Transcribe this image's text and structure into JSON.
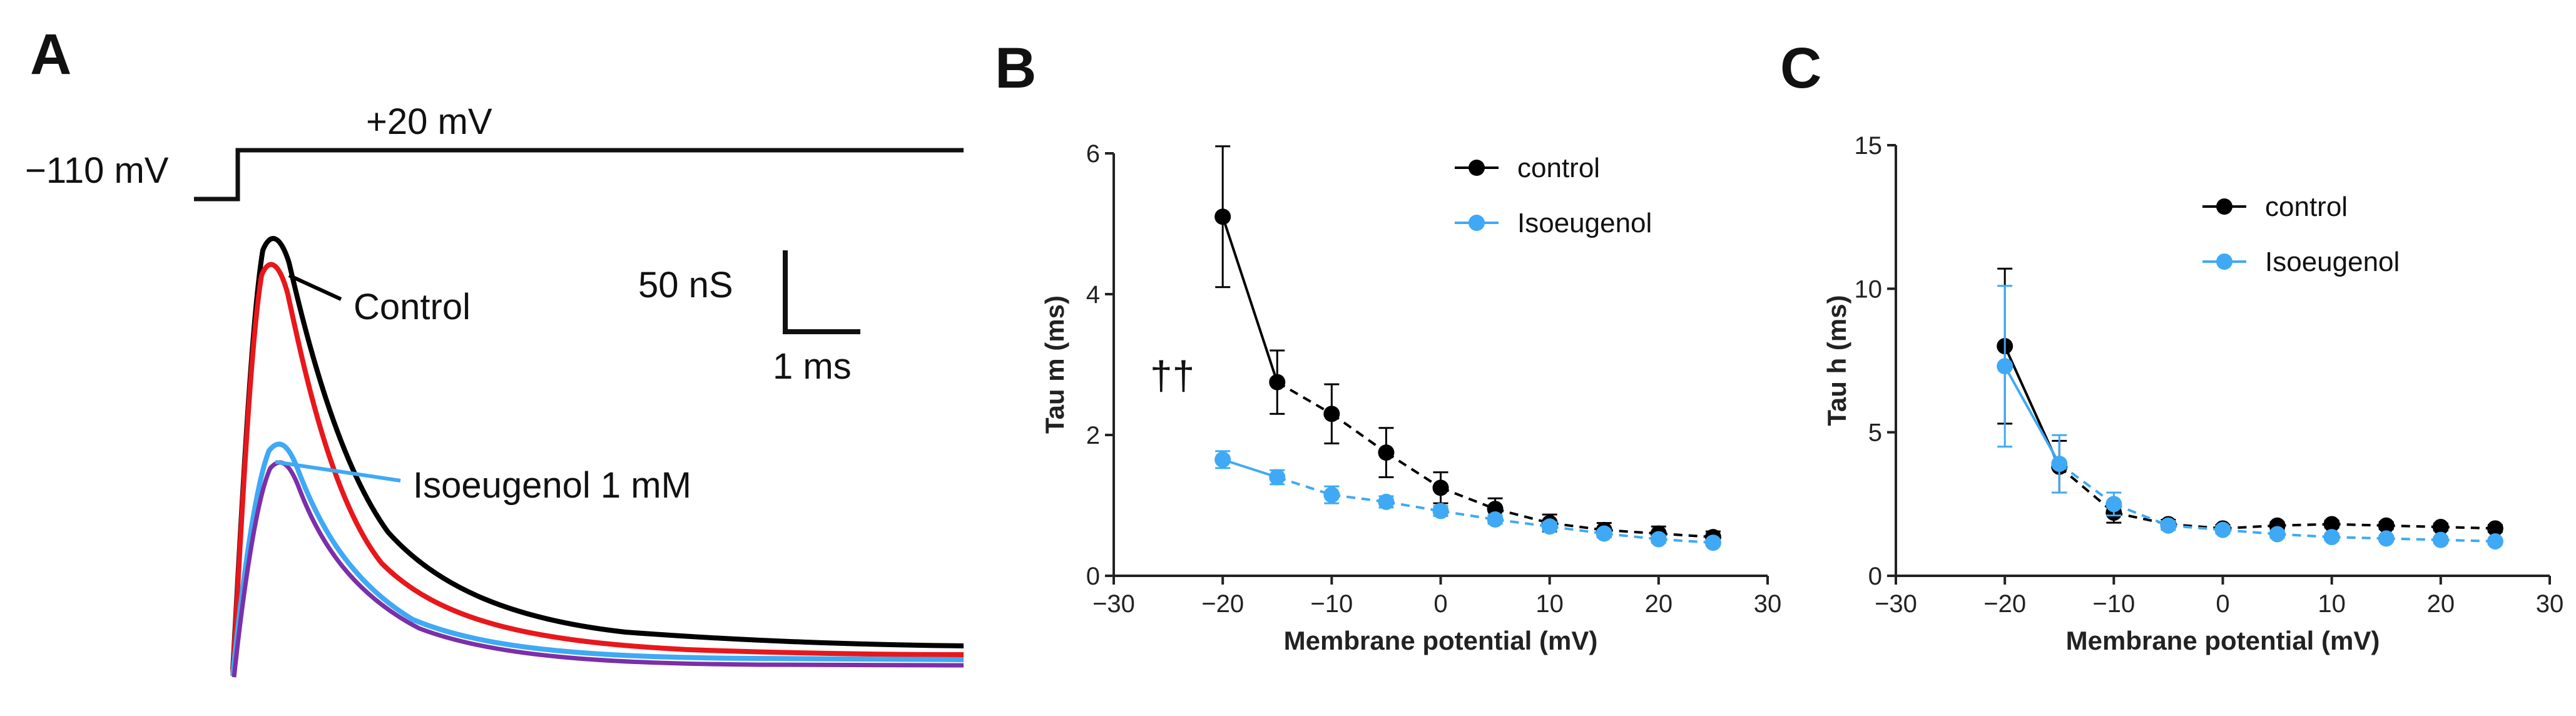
{
  "panels": {
    "a_letter": "A",
    "b_letter": "B",
    "c_letter": "C"
  },
  "panel_a": {
    "holding_label": "−110 mV",
    "step_label": "+20 mV",
    "control_label": "Control",
    "drug_label": "Isoeugenol 1 mM",
    "scale_y_label": "50 nS",
    "scale_x_label": "1 ms",
    "colors": {
      "control_1": "#000000",
      "control_2": "#e8171b",
      "drug_1": "#3fa9f5",
      "drug_2": "#7b2fa8"
    }
  },
  "chart_data": [
    {
      "type": "line",
      "panel": "B",
      "xlabel": "Membrane potential (mV)",
      "ylabel": "Tau m (ms)",
      "xlim": [
        -30,
        30
      ],
      "ylim": [
        0,
        6
      ],
      "xticks": [
        -30,
        -20,
        -10,
        0,
        10,
        20,
        30
      ],
      "yticks": [
        0,
        2,
        4,
        6
      ],
      "annotation": "††",
      "series": [
        {
          "name": "control",
          "color": "#000000",
          "x": [
            -20,
            -15,
            -10,
            -5,
            0,
            5,
            10,
            15,
            20,
            25
          ],
          "y": [
            5.1,
            2.75,
            2.3,
            1.75,
            1.25,
            0.95,
            0.75,
            0.65,
            0.6,
            0.55
          ],
          "err": [
            1.0,
            0.45,
            0.42,
            0.35,
            0.22,
            0.15,
            0.12,
            0.1,
            0.1,
            0.08
          ]
        },
        {
          "name": "Isoeugenol",
          "color": "#3fa9f5",
          "x": [
            -20,
            -15,
            -10,
            -5,
            0,
            5,
            10,
            15,
            20,
            25
          ],
          "y": [
            1.65,
            1.4,
            1.15,
            1.05,
            0.92,
            0.8,
            0.7,
            0.6,
            0.52,
            0.47
          ],
          "err": [
            0.12,
            0.1,
            0.12,
            0.08,
            0.07,
            0.06,
            0.06,
            0.05,
            0.05,
            0.04
          ]
        }
      ]
    },
    {
      "type": "line",
      "panel": "C",
      "xlabel": "Membrane potential (mV)",
      "ylabel": "Tau h (ms)",
      "xlim": [
        -30,
        30
      ],
      "ylim": [
        0,
        15
      ],
      "xticks": [
        -30,
        -20,
        -10,
        0,
        10,
        20,
        30
      ],
      "yticks": [
        0,
        5,
        10,
        15
      ],
      "series": [
        {
          "name": "control",
          "color": "#000000",
          "x": [
            -20,
            -15,
            -10,
            -5,
            0,
            5,
            10,
            15,
            20,
            25
          ],
          "y": [
            8.0,
            3.8,
            2.2,
            1.8,
            1.65,
            1.75,
            1.8,
            1.75,
            1.7,
            1.65
          ],
          "err": [
            2.7,
            0.9,
            0.35,
            0.15,
            0.12,
            0.12,
            0.12,
            0.12,
            0.12,
            0.12
          ]
        },
        {
          "name": "Isoeugenol",
          "color": "#3fa9f5",
          "x": [
            -20,
            -15,
            -10,
            -5,
            0,
            5,
            10,
            15,
            20,
            25
          ],
          "y": [
            7.3,
            3.9,
            2.5,
            1.75,
            1.6,
            1.45,
            1.35,
            1.3,
            1.25,
            1.2
          ],
          "err": [
            2.8,
            1.0,
            0.4,
            0.15,
            0.12,
            0.12,
            0.12,
            0.1,
            0.1,
            0.1
          ]
        }
      ]
    }
  ]
}
